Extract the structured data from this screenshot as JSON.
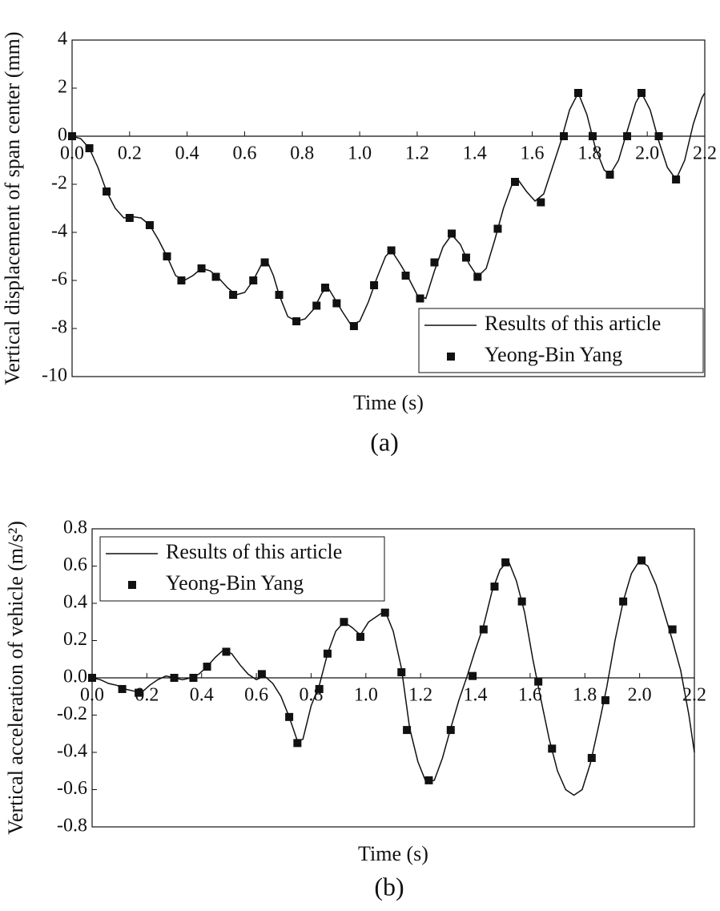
{
  "chart_data": [
    {
      "type": "line",
      "caption": "(a)",
      "xlabel": "Time (s)",
      "ylabel": "Vertical displacement of span center (mm)",
      "xlim": [
        0,
        2.2
      ],
      "ylim": [
        -10,
        4
      ],
      "xticks": [
        {
          "value": 0,
          "label": "0.0"
        },
        0.2,
        0.4,
        0.6,
        0.8,
        {
          "value": 1,
          "label": "1.0"
        },
        1.2,
        1.4,
        1.6,
        1.8,
        {
          "value": 2,
          "label": "2.0"
        },
        2.2
      ],
      "yticks": [
        -10,
        -8,
        -6,
        -4,
        -2,
        0,
        2,
        4
      ],
      "legend": "lower right",
      "series": [
        {
          "name": "Results of this article",
          "type": "line",
          "color": "#111111",
          "x": [
            0,
            0.03,
            0.06,
            0.09,
            0.12,
            0.15,
            0.18,
            0.21,
            0.24,
            0.27,
            0.3,
            0.33,
            0.36,
            0.39,
            0.42,
            0.45,
            0.48,
            0.51,
            0.54,
            0.57,
            0.6,
            0.63,
            0.66,
            0.68,
            0.7,
            0.72,
            0.75,
            0.78,
            0.81,
            0.84,
            0.87,
            0.89,
            0.91,
            0.94,
            0.97,
            1.0,
            1.03,
            1.06,
            1.09,
            1.11,
            1.14,
            1.17,
            1.2,
            1.23,
            1.26,
            1.29,
            1.32,
            1.35,
            1.38,
            1.41,
            1.44,
            1.47,
            1.5,
            1.53,
            1.55,
            1.58,
            1.61,
            1.64,
            1.67,
            1.7,
            1.73,
            1.76,
            1.79,
            1.82,
            1.85,
            1.87,
            1.9,
            1.93,
            1.96,
            1.98,
            2.01,
            2.04,
            2.07,
            2.1,
            2.13,
            2.16,
            2.19,
            2.2
          ],
          "values": [
            0,
            -0.1,
            -0.5,
            -1.3,
            -2.3,
            -3.0,
            -3.4,
            -3.35,
            -3.4,
            -3.7,
            -4.3,
            -5.0,
            -5.8,
            -6.0,
            -5.8,
            -5.5,
            -5.6,
            -5.9,
            -6.3,
            -6.6,
            -6.5,
            -6.0,
            -5.3,
            -5.25,
            -5.8,
            -6.6,
            -7.5,
            -7.7,
            -7.6,
            -7.2,
            -6.5,
            -6.3,
            -6.7,
            -7.3,
            -7.85,
            -7.7,
            -6.9,
            -5.9,
            -5.0,
            -4.75,
            -5.3,
            -5.9,
            -6.6,
            -6.75,
            -5.6,
            -4.6,
            -4.1,
            -4.5,
            -5.3,
            -5.85,
            -5.5,
            -4.3,
            -3.0,
            -2.0,
            -1.8,
            -2.3,
            -2.7,
            -2.4,
            -1.3,
            -0.2,
            1.1,
            1.8,
            0.9,
            -0.5,
            -1.4,
            -1.6,
            -1.0,
            0.2,
            1.4,
            1.8,
            1.1,
            -0.2,
            -1.3,
            -1.8,
            -1.0,
            0.5,
            1.6,
            1.8
          ]
        },
        {
          "name": "Yeong-Bin Yang",
          "type": "scatter",
          "color": "#111111",
          "x": [
            0,
            0.06,
            0.12,
            0.2,
            0.27,
            0.33,
            0.38,
            0.45,
            0.5,
            0.56,
            0.63,
            0.67,
            0.72,
            0.78,
            0.85,
            0.88,
            0.92,
            0.98,
            1.05,
            1.11,
            1.16,
            1.21,
            1.26,
            1.32,
            1.37,
            1.41,
            1.48,
            1.54,
            1.63,
            1.71,
            1.76,
            1.81,
            1.87,
            1.93,
            1.98,
            2.04,
            2.1
          ],
          "values": [
            0,
            -0.5,
            -2.3,
            -3.4,
            -3.7,
            -5.0,
            -6.0,
            -5.5,
            -5.85,
            -6.6,
            -6.0,
            -5.25,
            -6.6,
            -7.7,
            -7.05,
            -6.3,
            -6.95,
            -7.9,
            -6.2,
            -4.75,
            -5.8,
            -6.75,
            -5.25,
            -4.05,
            -5.05,
            -5.85,
            -3.85,
            -1.9,
            -2.75,
            0,
            1.8,
            0,
            -1.6,
            0,
            1.8,
            0,
            -1.8
          ]
        }
      ]
    },
    {
      "type": "line",
      "caption": "(b)",
      "xlabel": "Time (s)",
      "ylabel": "Vertical acceleration of vehicle (m/s²)",
      "xlim": [
        0,
        2.2
      ],
      "ylim": [
        -0.8,
        0.8
      ],
      "xticks": [
        {
          "value": 0,
          "label": "0.0"
        },
        0.2,
        0.4,
        0.6,
        0.8,
        {
          "value": 1,
          "label": "1.0"
        },
        1.2,
        1.4,
        1.6,
        1.8,
        {
          "value": 2,
          "label": "2.0"
        },
        2.2
      ],
      "yticks": [
        -0.8,
        -0.6,
        -0.4,
        -0.2,
        {
          "value": 0,
          "label": "0.0"
        },
        0.2,
        0.4,
        0.6,
        0.8
      ],
      "legend": "upper left",
      "series": [
        {
          "name": "Results of this article",
          "type": "line",
          "color": "#111111",
          "x": [
            0,
            0.03,
            0.06,
            0.09,
            0.12,
            0.15,
            0.18,
            0.21,
            0.24,
            0.27,
            0.3,
            0.33,
            0.36,
            0.39,
            0.42,
            0.45,
            0.48,
            0.51,
            0.54,
            0.57,
            0.6,
            0.63,
            0.66,
            0.69,
            0.72,
            0.75,
            0.77,
            0.8,
            0.83,
            0.86,
            0.89,
            0.92,
            0.95,
            0.98,
            1.01,
            1.04,
            1.07,
            1.1,
            1.13,
            1.16,
            1.19,
            1.22,
            1.25,
            1.28,
            1.31,
            1.34,
            1.37,
            1.4,
            1.43,
            1.46,
            1.49,
            1.52,
            1.55,
            1.58,
            1.61,
            1.64,
            1.67,
            1.7,
            1.73,
            1.76,
            1.79,
            1.82,
            1.85,
            1.88,
            1.91,
            1.94,
            1.97,
            2.0,
            2.03,
            2.06,
            2.09,
            2.12,
            2.15,
            2.18,
            2.2
          ],
          "values": [
            0,
            -0.01,
            -0.03,
            -0.04,
            -0.06,
            -0.07,
            -0.08,
            -0.04,
            -0.01,
            0.01,
            0,
            -0.01,
            0,
            0.02,
            0.06,
            0.11,
            0.15,
            0.13,
            0.07,
            0.02,
            -0.01,
            0.01,
            -0.03,
            -0.1,
            -0.21,
            -0.34,
            -0.33,
            -0.15,
            -0.04,
            0.13,
            0.25,
            0.3,
            0.27,
            0.23,
            0.3,
            0.33,
            0.36,
            0.25,
            0.05,
            -0.27,
            -0.45,
            -0.56,
            -0.55,
            -0.43,
            -0.27,
            -0.12,
            0.01,
            0.15,
            0.28,
            0.46,
            0.58,
            0.63,
            0.52,
            0.35,
            0.1,
            -0.12,
            -0.33,
            -0.5,
            -0.6,
            -0.63,
            -0.6,
            -0.46,
            -0.26,
            -0.05,
            0.2,
            0.41,
            0.56,
            0.63,
            0.6,
            0.5,
            0.35,
            0.2,
            0.04,
            -0.2,
            -0.4
          ]
        },
        {
          "name": "Yeong-Bin Yang",
          "type": "scatter",
          "color": "#111111",
          "x": [
            0,
            0.11,
            0.17,
            0.3,
            0.37,
            0.42,
            0.49,
            0.62,
            0.72,
            0.75,
            0.83,
            0.86,
            0.92,
            0.98,
            1.07,
            1.13,
            1.15,
            1.23,
            1.31,
            1.39,
            1.43,
            1.47,
            1.51,
            1.57,
            1.63,
            1.68,
            1.825,
            1.875,
            1.94,
            2.007,
            2.12
          ],
          "values": [
            0,
            -0.06,
            -0.08,
            0,
            0,
            0.06,
            0.14,
            0.02,
            -0.21,
            -0.35,
            -0.06,
            0.13,
            0.3,
            0.22,
            0.35,
            0.03,
            -0.28,
            -0.55,
            -0.28,
            0.01,
            0.26,
            0.49,
            0.62,
            0.41,
            -0.02,
            -0.38,
            -0.43,
            -0.12,
            0.41,
            0.63,
            0.26
          ]
        }
      ]
    }
  ]
}
